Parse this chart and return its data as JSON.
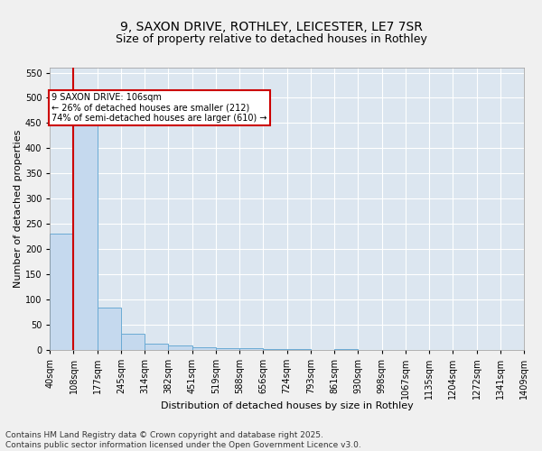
{
  "title_line1": "9, SAXON DRIVE, ROTHLEY, LEICESTER, LE7 7SR",
  "title_line2": "Size of property relative to detached houses in Rothley",
  "xlabel": "Distribution of detached houses by size in Rothley",
  "ylabel": "Number of detached properties",
  "bar_color": "#c5d9ee",
  "bar_edge_color": "#6aaad4",
  "background_color": "#dce6f0",
  "grid_color": "#ffffff",
  "annotation_text": "9 SAXON DRIVE: 106sqm\n← 26% of detached houses are smaller (212)\n74% of semi-detached houses are larger (610) →",
  "property_size_sqm": 106,
  "vline_color": "#cc0000",
  "annotation_box_color": "#cc0000",
  "bin_edges": [
    40,
    108,
    177,
    245,
    314,
    382,
    451,
    519,
    588,
    656,
    724,
    793,
    861,
    930,
    998,
    1067,
    1135,
    1204,
    1272,
    1341,
    1409
  ],
  "bin_labels": [
    "40sqm",
    "108sqm",
    "177sqm",
    "245sqm",
    "314sqm",
    "382sqm",
    "451sqm",
    "519sqm",
    "588sqm",
    "656sqm",
    "724sqm",
    "793sqm",
    "861sqm",
    "930sqm",
    "998sqm",
    "1067sqm",
    "1135sqm",
    "1204sqm",
    "1272sqm",
    "1341sqm",
    "1409sqm"
  ],
  "counts": [
    230,
    453,
    84,
    31,
    12,
    8,
    5,
    3,
    2,
    1,
    1,
    0,
    1,
    0,
    0,
    0,
    0,
    0,
    0,
    0
  ],
  "ylim": [
    0,
    560
  ],
  "yticks": [
    0,
    50,
    100,
    150,
    200,
    250,
    300,
    350,
    400,
    450,
    500,
    550
  ],
  "footnote": "Contains HM Land Registry data © Crown copyright and database right 2025.\nContains public sector information licensed under the Open Government Licence v3.0.",
  "title_fontsize": 10,
  "subtitle_fontsize": 9,
  "axis_label_fontsize": 8,
  "tick_fontsize": 7,
  "footnote_fontsize": 6.5,
  "fig_bg": "#f0f0f0"
}
